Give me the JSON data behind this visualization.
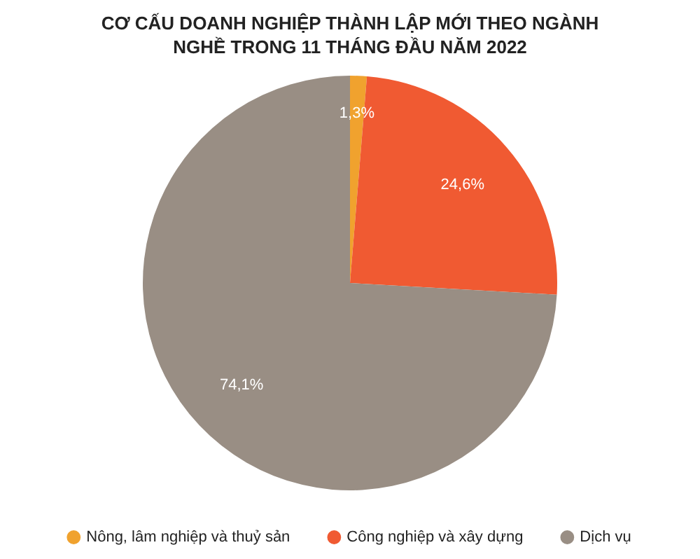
{
  "chart_data": {
    "type": "pie",
    "title": "CƠ CẤU DOANH NGHIỆP THÀNH LẬP MỚI THEO NGÀNH NGHỀ TRONG 11 THÁNG ĐẦU NĂM 2022",
    "categories": [
      "Nông, lâm nghiệp và thuỷ sản",
      "Công nghiệp và xây dựng",
      "Dịch vụ"
    ],
    "values": [
      1.3,
      24.6,
      74.1
    ],
    "colors": [
      "#f0a22e",
      "#f05a32",
      "#998e84"
    ],
    "value_labels": [
      "1,3%",
      "24,6%",
      "74,1%"
    ],
    "legend": "bottom"
  }
}
